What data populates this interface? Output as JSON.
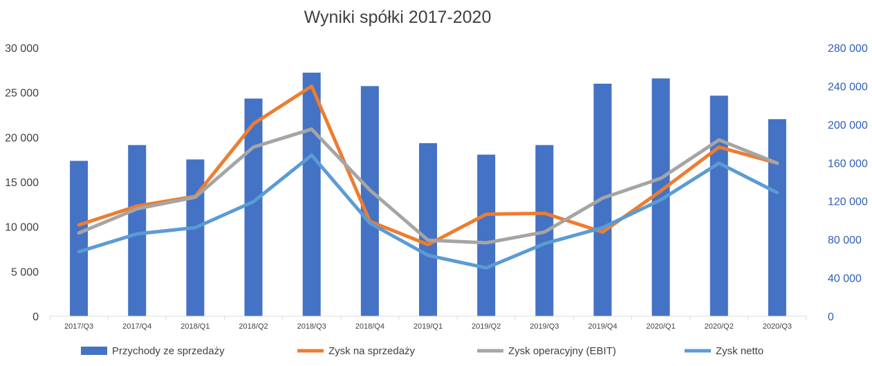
{
  "chart_data": {
    "type": "bar",
    "title": "Wyniki spółki 2017-2020",
    "categories": [
      "2017/Q3",
      "2017/Q4",
      "2018/Q1",
      "2018/Q2",
      "2018/Q3",
      "2018/Q4",
      "2019/Q1",
      "2019/Q2",
      "2019/Q3",
      "2019/Q4",
      "2020/Q1",
      "2020/Q2",
      "2020/Q3"
    ],
    "y_left": {
      "ylim": [
        0,
        30000
      ],
      "ticks": [
        0,
        5000,
        10000,
        15000,
        20000,
        25000,
        30000
      ],
      "tick_labels": [
        "0",
        "5 000",
        "10 000",
        "15 000",
        "20 000",
        "25 000",
        "30 000"
      ]
    },
    "y_right": {
      "ylim": [
        0,
        280000
      ],
      "ticks": [
        0,
        40000,
        80000,
        120000,
        160000,
        200000,
        240000,
        280000
      ],
      "tick_labels": [
        "0",
        "40 000",
        "80 000",
        "120 000",
        "160 000",
        "200 000",
        "240 000",
        "280 000"
      ]
    },
    "series": [
      {
        "name": "Przychody ze sprzedaży",
        "type": "bar",
        "axis": "right",
        "color": "#4472C4",
        "values": [
          162000,
          178500,
          163500,
          227000,
          254000,
          240000,
          180500,
          168500,
          178500,
          242500,
          248000,
          230000,
          205500
        ]
      },
      {
        "name": "Zysk na sprzedaży",
        "type": "line",
        "axis": "left",
        "color": "#ED7D31",
        "values": [
          10200,
          12300,
          13400,
          21500,
          25700,
          10600,
          8000,
          11400,
          11500,
          9400,
          14000,
          18900,
          17100
        ]
      },
      {
        "name": "Zysk operacyjny (EBIT)",
        "type": "line",
        "axis": "left",
        "color": "#A5A5A5",
        "values": [
          9300,
          12000,
          13300,
          18900,
          20900,
          14100,
          8500,
          8200,
          9400,
          13200,
          15400,
          19700,
          17100
        ]
      },
      {
        "name": "Zysk netto",
        "type": "line",
        "axis": "left",
        "color": "#5B9BD5",
        "values": [
          7200,
          9200,
          9900,
          12800,
          18000,
          10400,
          6800,
          5400,
          8100,
          9900,
          13000,
          17100,
          13800
        ]
      }
    ],
    "grid": false,
    "legend": "bottom"
  }
}
